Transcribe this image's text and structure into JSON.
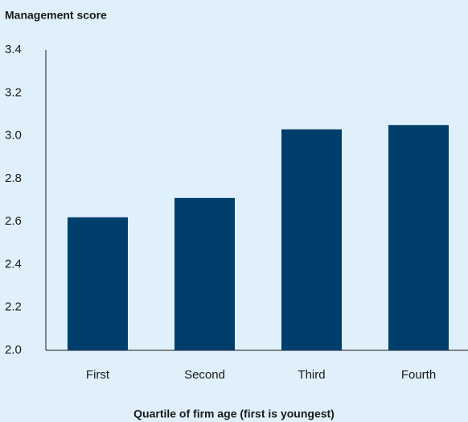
{
  "chart_data": {
    "type": "bar",
    "title": "Management score",
    "x_label": "Quartile of firm age (first is youngest)",
    "categories": [
      "First",
      "Second",
      "Third",
      "Fourth"
    ],
    "values": [
      2.62,
      2.71,
      3.03,
      3.05
    ],
    "color": "#003f6b",
    "ylim": [
      2.0,
      3.4
    ],
    "yticks": [
      {
        "value": 2.0,
        "label": "2.0"
      },
      2.2,
      2.4,
      2.6,
      2.8,
      {
        "value": 3.0,
        "label": "3.0"
      },
      3.2,
      3.4
    ],
    "grid": false
  }
}
